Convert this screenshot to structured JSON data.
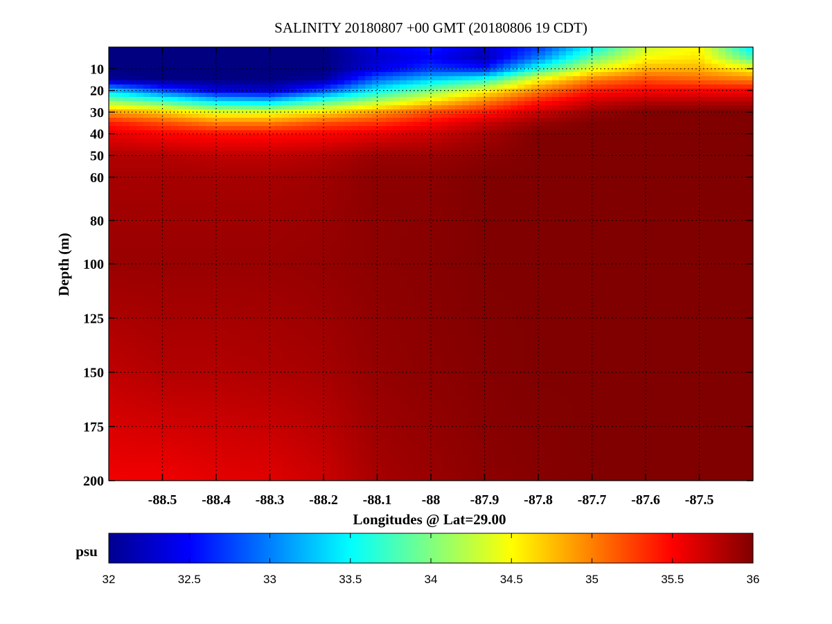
{
  "chart_data": {
    "type": "heatmap",
    "title": "SALINITY 20180807 +00 GMT (20180806 19 CDT)",
    "xlabel": "Longitudes @ Lat=29.00",
    "ylabel": "Depth (m)",
    "xlim": [
      -88.6,
      -87.4
    ],
    "ylim": [
      0,
      200
    ],
    "y_reversed": true,
    "grid": true,
    "x_ticks": [
      -88.5,
      -88.4,
      -88.3,
      -88.2,
      -88.1,
      -88,
      -87.9,
      -87.8,
      -87.7,
      -87.6,
      -87.5
    ],
    "x_tick_labels": [
      "-88.5",
      "-88.4",
      "-88.3",
      "-88.2",
      "-88.1",
      "-88",
      "-87.9",
      "-87.8",
      "-87.7",
      "-87.6",
      "-87.5"
    ],
    "y_ticks": [
      10,
      20,
      30,
      40,
      50,
      60,
      80,
      100,
      125,
      150,
      175,
      200
    ],
    "y_tick_labels": [
      "10",
      "20",
      "30",
      "40",
      "50",
      "60",
      "80",
      "100",
      "125",
      "150",
      "175",
      "200"
    ],
    "colorbar": {
      "label": "psu",
      "range": [
        32,
        36
      ],
      "colormap": "jet",
      "ticks": [
        32,
        32.5,
        33,
        33.5,
        34,
        34.5,
        35,
        35.5,
        36
      ],
      "tick_labels": [
        "32",
        "32.5",
        "33",
        "33.5",
        "34",
        "34.5",
        "35",
        "35.5",
        "36"
      ],
      "placement": "bottom"
    },
    "grid_longitudes": [
      -88.6,
      -88.5,
      -88.4,
      -88.3,
      -88.2,
      -88.1,
      -88.0,
      -87.9,
      -87.8,
      -87.7,
      -87.6,
      -87.5,
      -87.4
    ],
    "grid_depths": [
      0,
      5,
      10,
      15,
      20,
      25,
      30,
      35,
      40,
      50,
      60,
      100,
      150,
      200
    ],
    "salinity": [
      [
        32.0,
        32.0,
        32.0,
        32.0,
        32.0,
        32.4,
        32.6,
        32.3,
        32.7,
        33.5,
        34.3,
        34.5,
        33.4
      ],
      [
        32.0,
        32.0,
        32.0,
        32.0,
        32.0,
        32.3,
        32.5,
        32.2,
        33.0,
        33.9,
        34.5,
        34.6,
        33.8
      ],
      [
        32.0,
        32.0,
        32.0,
        32.0,
        32.0,
        32.4,
        32.7,
        32.6,
        33.6,
        34.4,
        34.8,
        34.8,
        34.5
      ],
      [
        32.1,
        32.0,
        32.0,
        32.0,
        32.1,
        32.9,
        33.3,
        33.6,
        34.5,
        35.0,
        35.2,
        35.1,
        35.0
      ],
      [
        33.3,
        32.8,
        32.4,
        32.3,
        32.8,
        33.5,
        34.0,
        34.5,
        35.0,
        35.4,
        35.5,
        35.5,
        35.5
      ],
      [
        34.1,
        33.8,
        33.4,
        33.3,
        33.8,
        34.2,
        34.6,
        35.0,
        35.4,
        35.7,
        35.8,
        35.8,
        35.8
      ],
      [
        34.9,
        34.7,
        34.4,
        34.4,
        34.6,
        34.9,
        35.2,
        35.4,
        35.7,
        35.9,
        36.0,
        36.0,
        36.0
      ],
      [
        35.4,
        35.2,
        35.0,
        35.0,
        35.2,
        35.3,
        35.5,
        35.7,
        35.9,
        36.0,
        36.0,
        36.0,
        36.0
      ],
      [
        35.6,
        35.5,
        35.45,
        35.45,
        35.5,
        35.6,
        35.7,
        35.85,
        36.0,
        36.0,
        36.0,
        36.0,
        36.0
      ],
      [
        35.8,
        35.8,
        35.75,
        35.75,
        35.8,
        35.9,
        35.9,
        35.95,
        36.0,
        36.0,
        36.0,
        36.0,
        36.0
      ],
      [
        35.85,
        35.85,
        35.85,
        35.85,
        35.88,
        35.95,
        35.95,
        36.0,
        36.0,
        36.0,
        36.0,
        36.0,
        36.0
      ],
      [
        35.9,
        35.9,
        35.9,
        35.9,
        35.92,
        35.95,
        35.97,
        36.0,
        36.0,
        36.0,
        36.0,
        36.0,
        36.0
      ],
      [
        35.75,
        35.8,
        35.8,
        35.82,
        35.85,
        35.92,
        35.95,
        35.98,
        36.0,
        36.0,
        36.0,
        36.0,
        36.0
      ],
      [
        35.55,
        35.55,
        35.6,
        35.62,
        35.7,
        35.85,
        35.9,
        35.95,
        35.97,
        36.0,
        36.0,
        36.0,
        36.0
      ]
    ]
  }
}
